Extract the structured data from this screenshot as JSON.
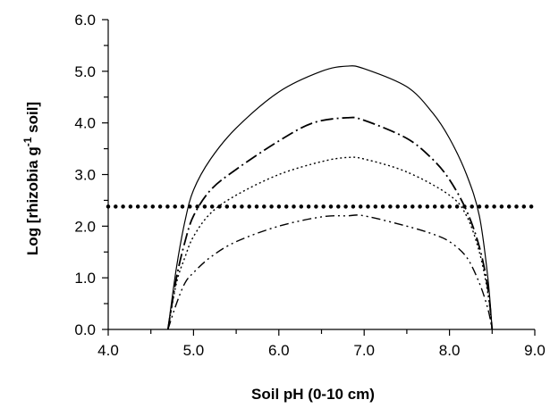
{
  "chart_data": {
    "type": "line",
    "xlabel": "Soil pH (0-10 cm)",
    "ylabel_parts": {
      "pre": "Log [rhizobia g",
      "sup": "-1",
      "post": " soil]"
    },
    "xlim": [
      4.0,
      9.0
    ],
    "ylim": [
      0.0,
      6.0
    ],
    "x_ticks": [
      "4.0",
      "5.0",
      "6.0",
      "7.0",
      "8.0",
      "9.0"
    ],
    "y_ticks": [
      "0.0",
      "1.0",
      "2.0",
      "3.0",
      "4.0",
      "5.0",
      "6.0"
    ],
    "grid": false,
    "legend": "none",
    "series": [
      {
        "style": "solid",
        "points": [
          [
            4.7,
            0.0
          ],
          [
            4.8,
            1.2
          ],
          [
            4.9,
            2.1
          ],
          [
            5.0,
            2.7
          ],
          [
            5.2,
            3.3
          ],
          [
            5.5,
            3.9
          ],
          [
            6.0,
            4.6
          ],
          [
            6.5,
            5.0
          ],
          [
            6.8,
            5.1
          ],
          [
            7.0,
            5.05
          ],
          [
            7.5,
            4.7
          ],
          [
            7.8,
            4.2
          ],
          [
            8.0,
            3.7
          ],
          [
            8.2,
            3.0
          ],
          [
            8.35,
            2.2
          ],
          [
            8.45,
            1.0
          ],
          [
            8.5,
            0.0
          ]
        ]
      },
      {
        "style": "dash-dot",
        "points": [
          [
            4.7,
            0.0
          ],
          [
            4.8,
            1.0
          ],
          [
            4.9,
            1.7
          ],
          [
            5.0,
            2.2
          ],
          [
            5.2,
            2.7
          ],
          [
            5.5,
            3.1
          ],
          [
            6.0,
            3.65
          ],
          [
            6.4,
            4.0
          ],
          [
            6.8,
            4.1
          ],
          [
            7.0,
            4.05
          ],
          [
            7.5,
            3.7
          ],
          [
            7.8,
            3.3
          ],
          [
            8.0,
            2.9
          ],
          [
            8.2,
            2.3
          ],
          [
            8.35,
            1.6
          ],
          [
            8.45,
            0.8
          ],
          [
            8.5,
            0.0
          ]
        ]
      },
      {
        "style": "dotted",
        "points": [
          [
            4.7,
            0.0
          ],
          [
            4.8,
            0.9
          ],
          [
            4.9,
            1.4
          ],
          [
            5.0,
            1.8
          ],
          [
            5.2,
            2.25
          ],
          [
            5.5,
            2.6
          ],
          [
            6.0,
            3.0
          ],
          [
            6.5,
            3.25
          ],
          [
            6.8,
            3.33
          ],
          [
            7.0,
            3.3
          ],
          [
            7.5,
            3.05
          ],
          [
            8.0,
            2.6
          ],
          [
            8.2,
            2.2
          ],
          [
            8.35,
            1.5
          ],
          [
            8.45,
            0.7
          ],
          [
            8.5,
            0.0
          ]
        ]
      },
      {
        "style": "dash-dot-dot",
        "points": [
          [
            4.7,
            0.0
          ],
          [
            4.8,
            0.5
          ],
          [
            4.9,
            0.9
          ],
          [
            5.0,
            1.1
          ],
          [
            5.2,
            1.4
          ],
          [
            5.5,
            1.7
          ],
          [
            6.0,
            2.0
          ],
          [
            6.5,
            2.18
          ],
          [
            6.8,
            2.2
          ],
          [
            7.0,
            2.2
          ],
          [
            7.5,
            2.0
          ],
          [
            7.8,
            1.85
          ],
          [
            8.0,
            1.7
          ],
          [
            8.2,
            1.4
          ],
          [
            8.35,
            0.9
          ],
          [
            8.45,
            0.4
          ],
          [
            8.5,
            0.0
          ]
        ]
      }
    ],
    "reference_line": {
      "y": 2.38,
      "x_range": [
        4.0,
        9.0
      ],
      "style": "heavy-dotted"
    }
  }
}
